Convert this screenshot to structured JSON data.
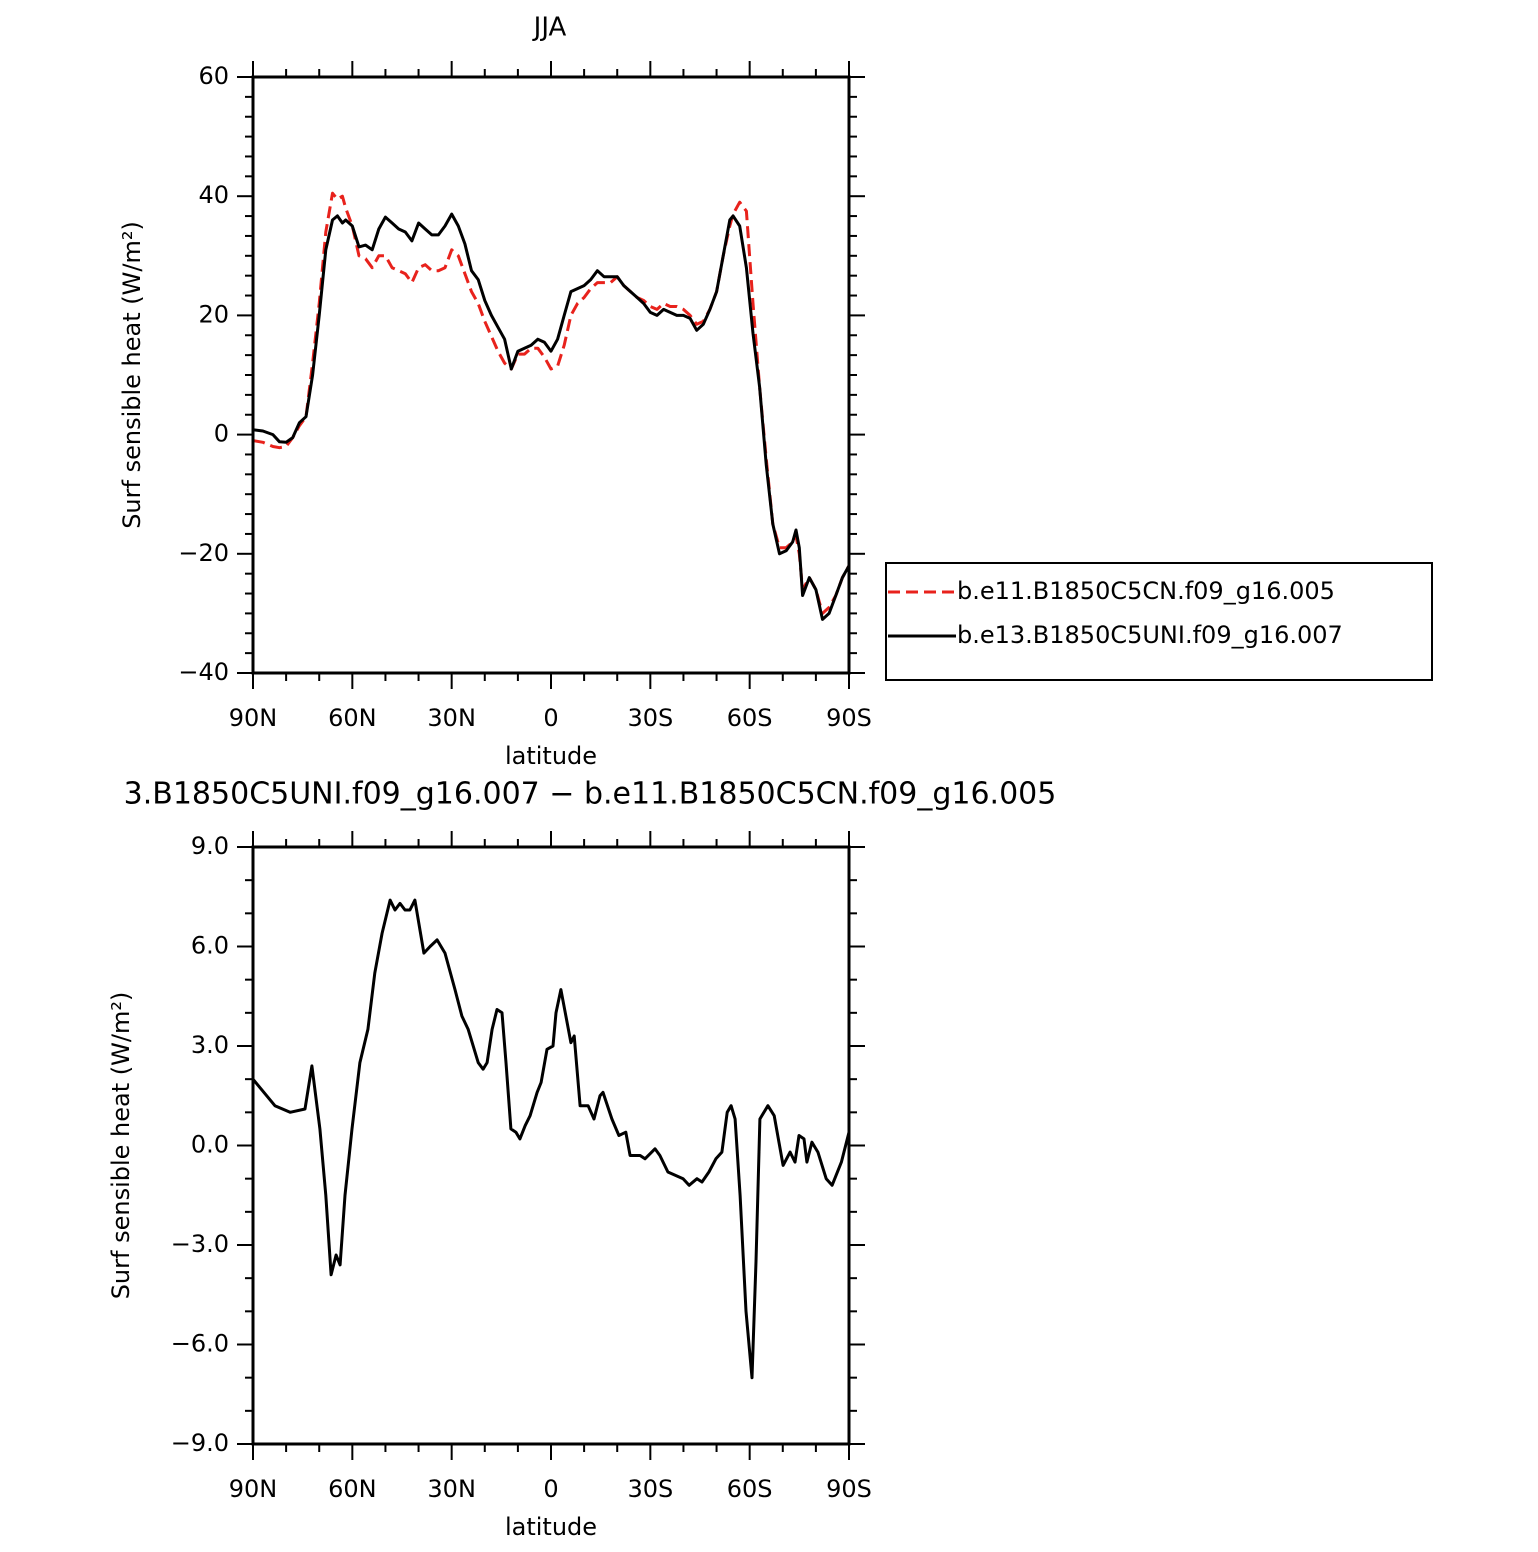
{
  "chart_data": [
    {
      "type": "line",
      "title": "JJA",
      "xlabel": "latitude",
      "ylabel": "Surf sensible heat (W/m²)",
      "x": [
        90,
        87,
        84,
        82,
        80,
        78,
        76,
        74,
        72,
        70,
        68,
        66,
        64.5,
        63,
        62,
        60,
        58,
        56,
        54,
        52,
        50,
        48,
        46,
        44,
        42,
        40,
        38,
        36,
        34,
        32,
        30,
        28,
        26,
        24,
        22,
        20,
        18,
        16,
        14,
        12,
        10,
        8,
        6,
        4,
        2,
        0,
        -2,
        -4,
        -6,
        -8,
        -10,
        -12,
        -14,
        -16,
        -18,
        -20,
        -22,
        -24,
        -26,
        -28,
        -30,
        -32,
        -34,
        -36,
        -38,
        -40,
        -42,
        -44,
        -46,
        -48,
        -50,
        -52,
        -54,
        -55,
        -57,
        -59,
        -61,
        -63,
        -65,
        -67,
        -69,
        -71,
        -73,
        -74,
        -75,
        -76,
        -78,
        -80,
        -82,
        -84,
        -86,
        -88,
        -90
      ],
      "xlim": [
        90,
        -90
      ],
      "xticks": [
        {
          "value": 90,
          "label": "90N"
        },
        {
          "value": 60,
          "label": "60N"
        },
        {
          "value": 30,
          "label": "30N"
        },
        0,
        {
          "value": -30,
          "label": "30S"
        },
        {
          "value": -60,
          "label": "60S"
        },
        {
          "value": -90,
          "label": "90S"
        }
      ],
      "ylim": [
        -40,
        60
      ],
      "yticks": [
        {
          "value": -40,
          "label": "−40"
        },
        {
          "value": -20,
          "label": "−20"
        },
        0,
        20,
        40,
        60
      ],
      "legend": "outside-right",
      "series": [
        {
          "name": "b.e11.B1850C5CN.f09_g16.005",
          "color": "#e8221c",
          "line_style": "dashed",
          "values": [
            -1,
            -1.3,
            -2,
            -2.2,
            -2,
            -0.5,
            1.5,
            3,
            12,
            22,
            34,
            40.5,
            39.5,
            40,
            38,
            35,
            30,
            29.5,
            28,
            30,
            30,
            28,
            27.5,
            27,
            25.5,
            28,
            28.5,
            27.5,
            27.5,
            28,
            31,
            30,
            27,
            24,
            22,
            19,
            16.5,
            14,
            12,
            11,
            13.5,
            13.5,
            14.5,
            14.5,
            13,
            11,
            11.5,
            15,
            20,
            22,
            23,
            24.5,
            25.5,
            25.5,
            25.5,
            26.5,
            25,
            24,
            23,
            22.5,
            21.5,
            21,
            22,
            21.5,
            21.5,
            21,
            20,
            18.5,
            19,
            21,
            24,
            30,
            35,
            37,
            39,
            37.5,
            22,
            8,
            -4,
            -15,
            -19,
            -19,
            -18,
            -17,
            -20,
            -26,
            -24,
            -26,
            -30,
            -29,
            -27,
            -24,
            -22
          ]
        },
        {
          "name": "b.e13.B1850C5UNI.f09_g16.007",
          "color": "#000000",
          "line_style": "solid",
          "values": [
            0.8,
            0.6,
            0.0,
            -1.2,
            -1.3,
            -0.5,
            2.0,
            3.0,
            10,
            20,
            31,
            36,
            36.7,
            35.5,
            36,
            35,
            31.5,
            31.8,
            31,
            34.5,
            36.5,
            35.5,
            34.5,
            34,
            32.5,
            35.5,
            34.5,
            33.5,
            33.5,
            35,
            37,
            35,
            32,
            27.5,
            26,
            22.5,
            20,
            18,
            16,
            11,
            14,
            14.5,
            15,
            16,
            15.5,
            14,
            16,
            20,
            24,
            24.5,
            25,
            26,
            27.5,
            26.5,
            26.5,
            26.5,
            25,
            24,
            23,
            22,
            20.5,
            20,
            21,
            20.5,
            20,
            20,
            19.5,
            17.5,
            18.5,
            21,
            24,
            30,
            36,
            36.7,
            35,
            28,
            17,
            8,
            -5,
            -15,
            -20,
            -19.5,
            -18,
            -16,
            -19,
            -27,
            -24,
            -26,
            -31,
            -30,
            -27,
            -24,
            -22
          ]
        }
      ]
    },
    {
      "type": "line",
      "title": "3.B1850C5UNI.f09_g16.007 − b.e11.B1850C5CN.f09_g16.005",
      "xlabel": "latitude",
      "ylabel": "Surf sensible heat (W/m²)",
      "x": [
        90,
        83.4,
        78.8,
        74.3,
        72.2,
        69.8,
        68,
        66.4,
        64.9,
        63.7,
        62.2,
        60.1,
        57.7,
        55.3,
        53.2,
        51,
        48.6,
        47.1,
        45.6,
        44.1,
        42.6,
        41.1,
        38.4,
        36.5,
        34.4,
        32,
        29,
        26.9,
        25,
        22,
        20.5,
        19.3,
        17.8,
        16.3,
        14.8,
        13.6,
        12.1,
        10.6,
        9.4,
        7.8,
        6.3,
        4.2,
        3,
        1.2,
        -0.6,
        -1.5,
        -3,
        -4.5,
        -6,
        -7,
        -8.8,
        -11.2,
        -13,
        -14.8,
        -15.7,
        -18.4,
        -20.5,
        -22.6,
        -23.9,
        -26.9,
        -28.4,
        -31.4,
        -32.9,
        -35.3,
        -37.5,
        -39.9,
        -41.7,
        -44.1,
        -45.6,
        -47.7,
        -49.8,
        -51.6,
        -53.2,
        -54.4,
        -55.6,
        -57.1,
        -58.9,
        -60.7,
        -61.9,
        -63.1,
        -65.5,
        -67.4,
        -70.1,
        -72.2,
        -73.7,
        -74.9,
        -76.4,
        -77.3,
        -78.8,
        -80.6,
        -83.1,
        -84.9,
        -87.7,
        -90
      ],
      "xlim": [
        90,
        -90
      ],
      "xticks": [
        {
          "value": 90,
          "label": "90N"
        },
        {
          "value": 60,
          "label": "60N"
        },
        {
          "value": 30,
          "label": "30N"
        },
        0,
        {
          "value": -30,
          "label": "30S"
        },
        {
          "value": -60,
          "label": "60S"
        },
        {
          "value": -90,
          "label": "90S"
        }
      ],
      "ylim": [
        -9,
        9
      ],
      "yticks": [
        {
          "value": -9,
          "label": "−9.0"
        },
        {
          "value": -6,
          "label": "−6.0"
        },
        {
          "value": -3,
          "label": "−3.0"
        },
        {
          "value": 0,
          "label": "0.0"
        },
        {
          "value": 3,
          "label": "3.0"
        },
        {
          "value": 6,
          "label": "6.0"
        },
        {
          "value": 9,
          "label": "9.0"
        }
      ],
      "series": [
        {
          "color": "#000000",
          "line_style": "solid",
          "values": [
            2.0,
            1.2,
            1.0,
            1.1,
            2.4,
            0.5,
            -1.5,
            -3.9,
            -3.3,
            -3.6,
            -1.5,
            0.5,
            2.5,
            3.5,
            5.2,
            6.4,
            7.4,
            7.1,
            7.3,
            7.1,
            7.1,
            7.4,
            5.8,
            6.0,
            6.2,
            5.8,
            4.7,
            3.9,
            3.5,
            2.5,
            2.3,
            2.5,
            3.5,
            4.1,
            4.0,
            2.5,
            0.5,
            0.4,
            0.2,
            0.6,
            0.9,
            1.6,
            1.9,
            2.9,
            3.0,
            4.0,
            4.7,
            3.9,
            3.1,
            3.3,
            1.2,
            1.2,
            0.8,
            1.5,
            1.6,
            0.8,
            0.3,
            0.4,
            -0.3,
            -0.3,
            -0.4,
            -0.1,
            -0.3,
            -0.8,
            -0.9,
            -1.0,
            -1.2,
            -1.0,
            -1.1,
            -0.8,
            -0.4,
            -0.2,
            1.0,
            1.2,
            0.8,
            -1.5,
            -5.0,
            -7.0,
            -3.5,
            0.8,
            1.2,
            0.9,
            -0.6,
            -0.2,
            -0.5,
            0.3,
            0.2,
            -0.5,
            0.1,
            -0.2,
            -1.0,
            -1.2,
            -0.5,
            0.4
          ]
        }
      ]
    }
  ]
}
